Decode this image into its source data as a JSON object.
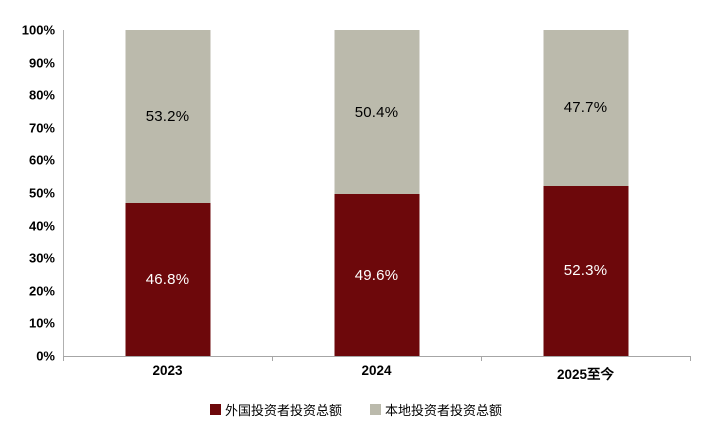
{
  "chart_data": {
    "type": "bar",
    "subtype": "stacked-100-percent",
    "categories": [
      "2023",
      "2024",
      "2025至今"
    ],
    "series": [
      {
        "name": "外国投资者投资总额",
        "color": "#6d080b",
        "label_color": "#ffffff",
        "values": [
          46.8,
          49.6,
          52.3
        ],
        "labels": [
          "46.8%",
          "49.6%",
          "52.3%"
        ]
      },
      {
        "name": "本地投资者投资总额",
        "color": "#bbbaac",
        "label_color": "#000000",
        "values": [
          53.2,
          50.4,
          47.7
        ],
        "labels": [
          "53.2%",
          "50.4%",
          "47.7%"
        ]
      }
    ],
    "title": "",
    "xlabel": "",
    "ylabel": "",
    "ylim": [
      0,
      100
    ],
    "y_ticks": [
      "100%",
      "90%",
      "80%",
      "70%",
      "60%",
      "50%",
      "40%",
      "30%",
      "20%",
      "10%",
      "0%"
    ],
    "grid": false,
    "legend_position": "bottom-center",
    "axis_color": "#a6a6a6",
    "background_color": "#ffffff"
  }
}
